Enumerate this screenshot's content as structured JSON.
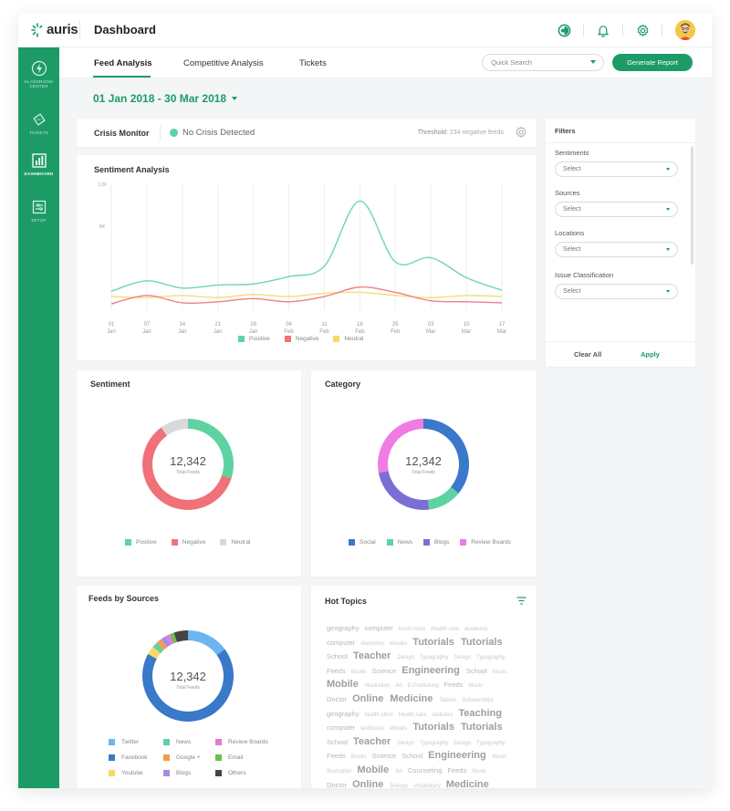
{
  "header": {
    "logo_text": "auris",
    "page_title": "Dashboard",
    "icons": [
      "theme-icon",
      "bell-icon",
      "gear-icon",
      "avatar"
    ]
  },
  "sidebar": {
    "items": [
      {
        "label": "KLASSROOM CENTER",
        "icon": "lightning-icon",
        "active": false
      },
      {
        "label": "TICKETS",
        "icon": "ticket-icon",
        "active": false
      },
      {
        "label": "DASHBOARD",
        "icon": "bar-chart-icon",
        "active": true
      },
      {
        "label": "SETUP",
        "icon": "setup-icon",
        "active": false
      }
    ]
  },
  "tabs": {
    "items": [
      "Feed Analysis",
      "Competitive Analysis",
      "Tickets"
    ],
    "active": "Feed Analysis",
    "search_placeholder": "Quick Search",
    "generate_label": "Generate Report"
  },
  "date_range": "01 Jan 2018 - 30 Mar 2018",
  "crisis": {
    "title": "Crisis Monitor",
    "status": "No Crisis Detected",
    "threshold_label": "Threshold:",
    "threshold_value": "234 negative feeds"
  },
  "colors": {
    "accent": "#1d9b67",
    "positive": "#5ed3a2",
    "negative": "#f07178",
    "neutral": "#f5d96b",
    "social": "#3a78c9",
    "news": "#5ed3a2",
    "blogs": "#7b6fd6",
    "review": "#f07be3"
  },
  "sentiment_analysis": {
    "title": "Sentiment Analysis",
    "chart_data": {
      "type": "line",
      "x": [
        "01 Jan",
        "07 Jan",
        "14 Jan",
        "21 Jan",
        "28 Jan",
        "04 Feb",
        "11 Feb",
        "18 Feb",
        "25 Feb",
        "03 Mar",
        "10 Mar",
        "17 Mar"
      ],
      "y_ticks": [
        "12K",
        "8K"
      ],
      "ylim": [
        0,
        12000
      ],
      "grid": "vertical",
      "legend": "bottom",
      "series": [
        {
          "name": "Positive",
          "values": [
            1800,
            2800,
            2100,
            2400,
            2500,
            3200,
            4200,
            10400,
            4600,
            5000,
            3100,
            1900
          ]
        },
        {
          "name": "Negative",
          "values": [
            600,
            1400,
            700,
            800,
            1100,
            800,
            1300,
            2200,
            1700,
            900,
            800,
            700
          ]
        },
        {
          "name": "Neutral",
          "values": [
            1300,
            1200,
            1400,
            1200,
            1500,
            1300,
            1600,
            1700,
            1400,
            1200,
            1400,
            1300
          ]
        }
      ]
    },
    "legend": [
      "Positive",
      "Negative",
      "Neutral"
    ]
  },
  "sentiment": {
    "title": "Sentiment",
    "total": "12,342",
    "total_label": "Total Feeds",
    "chart_data": {
      "type": "pie",
      "categories": [
        "Positive",
        "Negative",
        "Neutral"
      ],
      "values": [
        0.3,
        0.6,
        0.1
      ],
      "legend": "bottom"
    },
    "legend": [
      "Positive",
      "Negative",
      "Neutral"
    ]
  },
  "category": {
    "title": "Category",
    "total": "12,342",
    "total_label": "Total Feeds",
    "chart_data": {
      "type": "pie",
      "categories": [
        "Social",
        "News",
        "Blogs",
        "Review Boards"
      ],
      "values": [
        0.36,
        0.12,
        0.24,
        0.28
      ],
      "legend": "bottom"
    },
    "legend": [
      "Social",
      "News",
      "Blogs",
      "Review Boards"
    ]
  },
  "sources": {
    "title": "Feeds by Sources",
    "total": "12,342",
    "total_label": "Total Feeds",
    "chart_data": {
      "type": "pie",
      "categories": [
        "Twitter",
        "Facebook",
        "Youtube",
        "News",
        "Google +",
        "Blogs",
        "Review Boards",
        "Email",
        "Others"
      ],
      "values": [
        0.15,
        0.68,
        0.03,
        0.02,
        0.02,
        0.02,
        0.015,
        0.015,
        0.05
      ],
      "legend": "bottom"
    },
    "legend": [
      "Twitter",
      "News",
      "Review Boards",
      "Facebook",
      "Google +",
      "Email",
      "Youtube",
      "Blogs",
      "Others"
    ]
  },
  "filters": {
    "title": "Filters",
    "groups": [
      {
        "label": "Sentiments",
        "value": "Select"
      },
      {
        "label": "Sources",
        "value": "Select"
      },
      {
        "label": "Locations",
        "value": "Select"
      },
      {
        "label": "Issue Classification",
        "value": "Select"
      }
    ],
    "clear_label": "Clear All",
    "apply_label": "Apply"
  },
  "hot_topics": {
    "title": "Hot Topics",
    "lines": [
      [
        [
          "geography",
          "m"
        ],
        [
          "computer",
          "m"
        ],
        [
          "lunch room",
          "s"
        ],
        [
          "Health care",
          "s"
        ],
        [
          "academic",
          "s"
        ]
      ],
      [
        [
          "computer",
          "m"
        ],
        [
          "chemistry",
          "s"
        ],
        [
          "ebooks",
          "s"
        ],
        [
          "Tutorials",
          "l"
        ],
        [
          "Tutorials",
          "l"
        ]
      ],
      [
        [
          "School",
          "m"
        ],
        [
          "Teacher",
          "l"
        ],
        [
          "Design",
          "s"
        ],
        [
          "Typography",
          "s"
        ],
        [
          "Design",
          "s"
        ],
        [
          "Typography",
          "s"
        ]
      ],
      [
        [
          "Feeds",
          "m"
        ],
        [
          "Books",
          "s"
        ],
        [
          "Science",
          "m"
        ],
        [
          "Engineering",
          "l"
        ],
        [
          "School",
          "m"
        ],
        [
          "Music",
          "s"
        ]
      ],
      [
        [
          "Mobile",
          "l"
        ],
        [
          "Illustration",
          "s"
        ],
        [
          "Art",
          "s"
        ],
        [
          "E-Publishing",
          "s"
        ],
        [
          "Feeds",
          "m"
        ],
        [
          "Music",
          "s"
        ]
      ],
      [
        [
          "Doctor",
          "m"
        ],
        [
          "Online",
          "l"
        ],
        [
          "Medicine",
          "l"
        ],
        [
          "Tablets",
          "s"
        ],
        [
          "Scholarships",
          "s"
        ]
      ],
      [
        [
          "geography",
          "m"
        ],
        [
          "health clinic",
          "s"
        ],
        [
          "Health care",
          "s"
        ],
        [
          "statistics",
          "s"
        ],
        [
          "Teaching",
          "l"
        ]
      ],
      [
        [
          "computer",
          "m"
        ],
        [
          "textbooks",
          "s"
        ],
        [
          "ebooks",
          "s"
        ],
        [
          "Tutorials",
          "l"
        ],
        [
          "Tutorials",
          "l"
        ]
      ],
      [
        [
          "School",
          "m"
        ],
        [
          "Teacher",
          "l"
        ],
        [
          "Design",
          "s"
        ],
        [
          "Typography",
          "s"
        ],
        [
          "Design",
          "s"
        ],
        [
          "Typography",
          "s"
        ]
      ],
      [
        [
          "Feeds",
          "m"
        ],
        [
          "Books",
          "s"
        ],
        [
          "Science",
          "m"
        ],
        [
          "School",
          "m"
        ],
        [
          "Engineering",
          "l"
        ],
        [
          "Music",
          "s"
        ]
      ],
      [
        [
          "Illustration",
          "s"
        ],
        [
          "Mobile",
          "l"
        ],
        [
          "Art",
          "s"
        ],
        [
          "Counseling",
          "m"
        ],
        [
          "Feeds",
          "m"
        ],
        [
          "Music",
          "s"
        ]
      ],
      [
        [
          "Doctor",
          "m"
        ],
        [
          "Online",
          "l"
        ],
        [
          "Biology",
          "s"
        ],
        [
          "Vocabulary",
          "s"
        ],
        [
          "Medicine",
          "l"
        ]
      ]
    ]
  }
}
